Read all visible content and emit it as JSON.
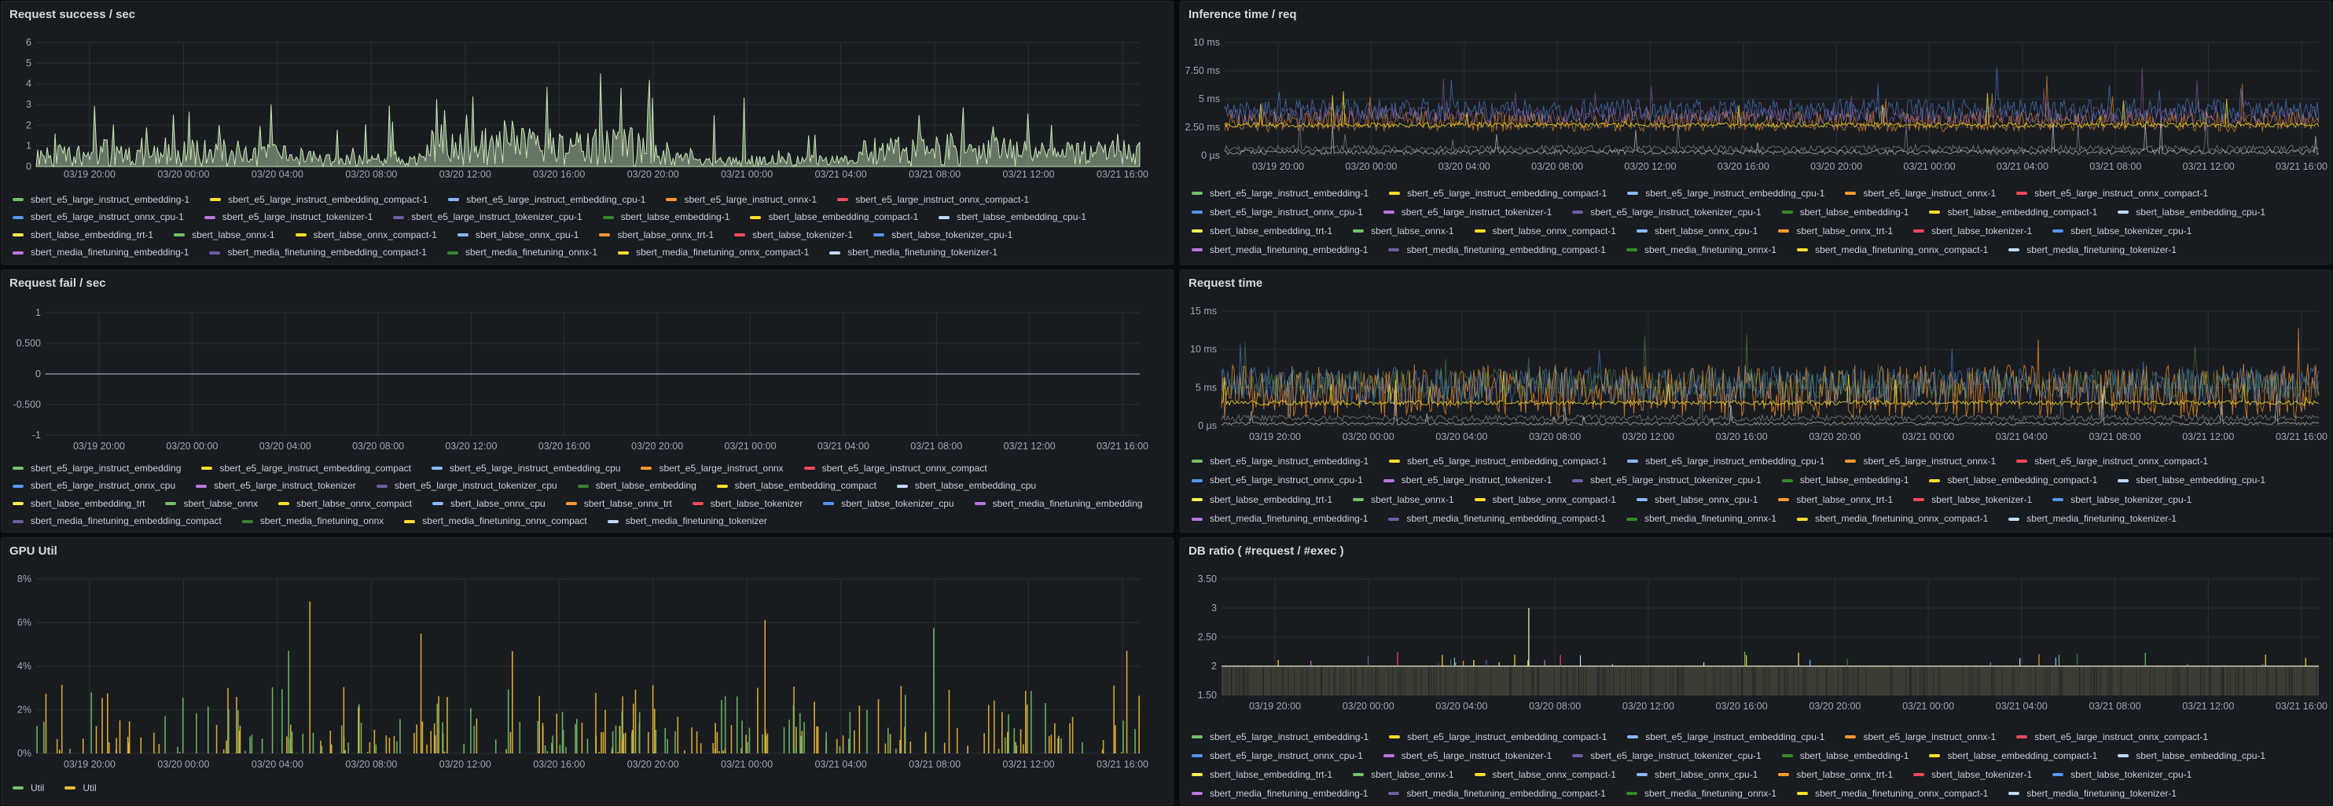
{
  "palette": [
    "#73bf69",
    "#fade2a",
    "#8ab8ff",
    "#ff9830",
    "#f2495c",
    "#5794f2",
    "#b877d9",
    "#705da0",
    "#37872d",
    "#fade2a",
    "#c0d8ff",
    "#ffee52"
  ],
  "chart_data": [
    {
      "id": "success",
      "title": "Request success / sec",
      "type": "area",
      "y_ticks": [
        "0",
        "1",
        "2",
        "3",
        "4",
        "5",
        "6"
      ],
      "ylim": [
        0,
        6
      ],
      "x_ticks": [
        "03/19 20:00",
        "03/20 00:00",
        "03/20 04:00",
        "03/20 08:00",
        "03/20 12:00",
        "03/20 16:00",
        "03/20 20:00",
        "03/21 00:00",
        "03/21 04:00",
        "03/21 08:00",
        "03/21 12:00",
        "03/21 16:00"
      ],
      "series_color": "#c8e6b8",
      "legend": [
        "sbert_e5_large_instruct_embedding-1",
        "sbert_e5_large_instruct_embedding_compact-1",
        "sbert_e5_large_instruct_embedding_cpu-1",
        "sbert_e5_large_instruct_onnx-1",
        "sbert_e5_large_instruct_onnx_compact-1",
        "sbert_e5_large_instruct_onnx_cpu-1",
        "sbert_e5_large_instruct_tokenizer-1",
        "sbert_e5_large_instruct_tokenizer_cpu-1",
        "sbert_labse_embedding-1",
        "sbert_labse_embedding_compact-1",
        "sbert_labse_embedding_cpu-1",
        "sbert_labse_embedding_trt-1",
        "sbert_labse_onnx-1",
        "sbert_labse_onnx_compact-1",
        "sbert_labse_onnx_cpu-1",
        "sbert_labse_onnx_trt-1",
        "sbert_labse_tokenizer-1",
        "sbert_labse_tokenizer_cpu-1",
        "sbert_media_finetuning_embedding-1",
        "sbert_media_finetuning_embedding_compact-1",
        "sbert_media_finetuning_onnx-1",
        "sbert_media_finetuning_onnx_compact-1",
        "sbert_media_finetuning_tokenizer-1"
      ]
    },
    {
      "id": "inference",
      "title": "Inference time / req",
      "type": "line",
      "y_ticks": [
        "0 µs",
        "2.50 ms",
        "5 ms",
        "7.50 ms",
        "10 ms"
      ],
      "ylim": [
        0,
        10
      ],
      "x_ticks": [
        "03/19 20:00",
        "03/20 00:00",
        "03/20 04:00",
        "03/20 08:00",
        "03/20 12:00",
        "03/20 16:00",
        "03/20 20:00",
        "03/21 00:00",
        "03/21 04:00",
        "03/21 08:00",
        "03/21 12:00",
        "03/21 16:00"
      ],
      "legend": [
        "sbert_e5_large_instruct_embedding-1",
        "sbert_e5_large_instruct_embedding_compact-1",
        "sbert_e5_large_instruct_embedding_cpu-1",
        "sbert_e5_large_instruct_onnx-1",
        "sbert_e5_large_instruct_onnx_compact-1",
        "sbert_e5_large_instruct_onnx_cpu-1",
        "sbert_e5_large_instruct_tokenizer-1",
        "sbert_e5_large_instruct_tokenizer_cpu-1",
        "sbert_labse_embedding-1",
        "sbert_labse_embedding_compact-1",
        "sbert_labse_embedding_cpu-1",
        "sbert_labse_embedding_trt-1",
        "sbert_labse_onnx-1",
        "sbert_labse_onnx_compact-1",
        "sbert_labse_onnx_cpu-1",
        "sbert_labse_onnx_trt-1",
        "sbert_labse_tokenizer-1",
        "sbert_labse_tokenizer_cpu-1",
        "sbert_media_finetuning_embedding-1",
        "sbert_media_finetuning_embedding_compact-1",
        "sbert_media_finetuning_onnx-1",
        "sbert_media_finetuning_onnx_compact-1",
        "sbert_media_finetuning_tokenizer-1"
      ]
    },
    {
      "id": "fail",
      "title": "Request fail / sec",
      "type": "line",
      "y_ticks": [
        "-1",
        "-0.500",
        "0",
        "0.500",
        "1"
      ],
      "ylim": [
        -1,
        1
      ],
      "x_ticks": [
        "03/19 20:00",
        "03/20 00:00",
        "03/20 04:00",
        "03/20 08:00",
        "03/20 12:00",
        "03/20 16:00",
        "03/20 20:00",
        "03/21 00:00",
        "03/21 04:00",
        "03/21 08:00",
        "03/21 12:00",
        "03/21 16:00"
      ],
      "values_all_series": 0,
      "legend": [
        "sbert_e5_large_instruct_embedding",
        "sbert_e5_large_instruct_embedding_compact",
        "sbert_e5_large_instruct_embedding_cpu",
        "sbert_e5_large_instruct_onnx",
        "sbert_e5_large_instruct_onnx_compact",
        "sbert_e5_large_instruct_onnx_cpu",
        "sbert_e5_large_instruct_tokenizer",
        "sbert_e5_large_instruct_tokenizer_cpu",
        "sbert_labse_embedding",
        "sbert_labse_embedding_compact",
        "sbert_labse_embedding_cpu",
        "sbert_labse_embedding_trt",
        "sbert_labse_onnx",
        "sbert_labse_onnx_compact",
        "sbert_labse_onnx_cpu",
        "sbert_labse_onnx_trt",
        "sbert_labse_tokenizer",
        "sbert_labse_tokenizer_cpu",
        "sbert_media_finetuning_embedding",
        "sbert_media_finetuning_embedding_compact",
        "sbert_media_finetuning_onnx",
        "sbert_media_finetuning_onnx_compact",
        "sbert_media_finetuning_tokenizer"
      ]
    },
    {
      "id": "reqtime",
      "title": "Request time",
      "type": "line",
      "y_ticks": [
        "0 µs",
        "5 ms",
        "10 ms",
        "15 ms"
      ],
      "ylim": [
        0,
        15
      ],
      "x_ticks": [
        "03/19 20:00",
        "03/20 00:00",
        "03/20 04:00",
        "03/20 08:00",
        "03/20 12:00",
        "03/20 16:00",
        "03/20 20:00",
        "03/21 00:00",
        "03/21 04:00",
        "03/21 08:00",
        "03/21 12:00",
        "03/21 16:00"
      ],
      "legend": [
        "sbert_e5_large_instruct_embedding-1",
        "sbert_e5_large_instruct_embedding_compact-1",
        "sbert_e5_large_instruct_embedding_cpu-1",
        "sbert_e5_large_instruct_onnx-1",
        "sbert_e5_large_instruct_onnx_compact-1",
        "sbert_e5_large_instruct_onnx_cpu-1",
        "sbert_e5_large_instruct_tokenizer-1",
        "sbert_e5_large_instruct_tokenizer_cpu-1",
        "sbert_labse_embedding-1",
        "sbert_labse_embedding_compact-1",
        "sbert_labse_embedding_cpu-1",
        "sbert_labse_embedding_trt-1",
        "sbert_labse_onnx-1",
        "sbert_labse_onnx_compact-1",
        "sbert_labse_onnx_cpu-1",
        "sbert_labse_onnx_trt-1",
        "sbert_labse_tokenizer-1",
        "sbert_labse_tokenizer_cpu-1",
        "sbert_media_finetuning_embedding-1",
        "sbert_media_finetuning_embedding_compact-1",
        "sbert_media_finetuning_onnx-1",
        "sbert_media_finetuning_onnx_compact-1",
        "sbert_media_finetuning_tokenizer-1"
      ]
    },
    {
      "id": "gpu",
      "title": "GPU Util",
      "type": "bar",
      "y_ticks": [
        "0%",
        "2%",
        "4%",
        "6%",
        "8%"
      ],
      "ylim": [
        0,
        8
      ],
      "x_ticks": [
        "03/19 20:00",
        "03/20 00:00",
        "03/20 04:00",
        "03/20 08:00",
        "03/20 12:00",
        "03/20 16:00",
        "03/20 20:00",
        "03/21 00:00",
        "03/21 04:00",
        "03/21 08:00",
        "03/21 12:00",
        "03/21 16:00"
      ],
      "series": [
        {
          "name": "Util",
          "color": "#73bf69"
        },
        {
          "name": "Util",
          "color": "#eab839"
        }
      ],
      "legend": [
        "Util",
        "Util"
      ]
    },
    {
      "id": "dbratio",
      "title": "DB ratio ( #request / #exec )",
      "type": "area",
      "y_ticks": [
        "1.50",
        "2",
        "2.50",
        "3",
        "3.50"
      ],
      "ylim": [
        1.5,
        3.5
      ],
      "baseline_value": 2,
      "x_ticks": [
        "03/19 20:00",
        "03/20 00:00",
        "03/20 04:00",
        "03/20 08:00",
        "03/20 12:00",
        "03/20 16:00",
        "03/20 20:00",
        "03/21 00:00",
        "03/21 04:00",
        "03/21 08:00",
        "03/21 12:00",
        "03/21 16:00"
      ],
      "legend": [
        "sbert_e5_large_instruct_embedding-1",
        "sbert_e5_large_instruct_embedding_compact-1",
        "sbert_e5_large_instruct_embedding_cpu-1",
        "sbert_e5_large_instruct_onnx-1",
        "sbert_e5_large_instruct_onnx_compact-1",
        "sbert_e5_large_instruct_onnx_cpu-1",
        "sbert_e5_large_instruct_tokenizer-1",
        "sbert_e5_large_instruct_tokenizer_cpu-1",
        "sbert_labse_embedding-1",
        "sbert_labse_embedding_compact-1",
        "sbert_labse_embedding_cpu-1",
        "sbert_labse_embedding_trt-1",
        "sbert_labse_onnx-1",
        "sbert_labse_onnx_compact-1",
        "sbert_labse_onnx_cpu-1",
        "sbert_labse_onnx_trt-1",
        "sbert_labse_tokenizer-1",
        "sbert_labse_tokenizer_cpu-1",
        "sbert_media_finetuning_embedding-1",
        "sbert_media_finetuning_embedding_compact-1",
        "sbert_media_finetuning_onnx-1",
        "sbert_media_finetuning_onnx_compact-1",
        "sbert_media_finetuning_tokenizer-1"
      ]
    }
  ]
}
